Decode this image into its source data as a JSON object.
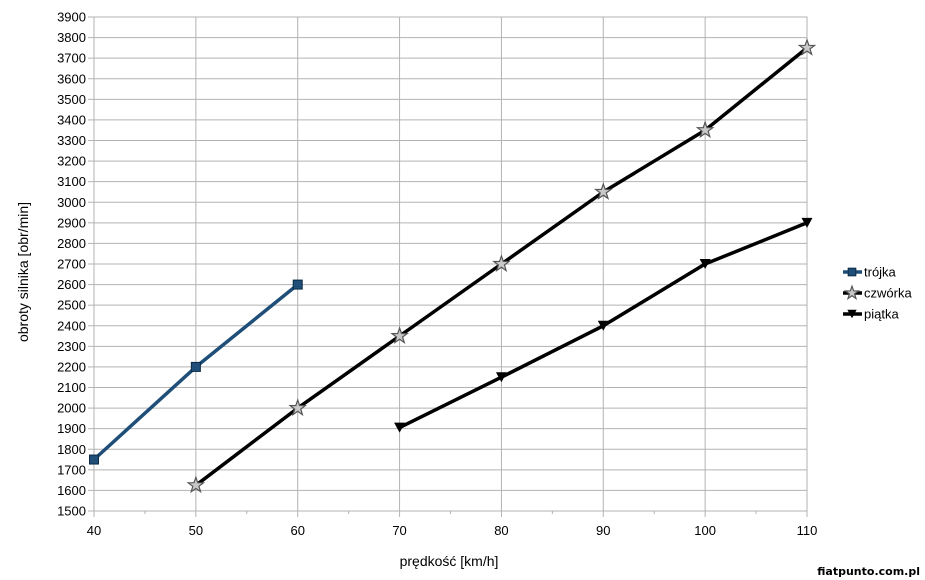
{
  "watermark": "fiatpunto.com.pl",
  "colors": {
    "trojka": "#1f4e79",
    "czworka": "#000000",
    "piatka": "#000000",
    "grid": "#b3b3b3",
    "star_fill": "#c8c8c8"
  },
  "chart_data": {
    "type": "line",
    "title": "",
    "xlabel": "prędkość [km/h]",
    "ylabel": "obroty silnika [obr/min]",
    "xlim": [
      40,
      110
    ],
    "ylim": [
      1500,
      3900
    ],
    "x_ticks": [
      40,
      50,
      60,
      70,
      80,
      90,
      100,
      110
    ],
    "y_ticks": [
      1500,
      1600,
      1700,
      1800,
      1900,
      2000,
      2100,
      2200,
      2300,
      2400,
      2500,
      2600,
      2700,
      2800,
      2900,
      3000,
      3100,
      3200,
      3300,
      3400,
      3500,
      3600,
      3700,
      3800,
      3900
    ],
    "grid": true,
    "legend": "right",
    "series": [
      {
        "name": "trójka",
        "marker": "square",
        "color": "#1f4e79",
        "x": [
          40,
          50,
          60
        ],
        "y": [
          1750,
          2200,
          2600
        ]
      },
      {
        "name": "czwórka",
        "marker": "star",
        "color": "#000000",
        "x": [
          50,
          60,
          70,
          80,
          90,
          100,
          110
        ],
        "y": [
          1625,
          2000,
          2350,
          2700,
          3050,
          3350,
          3750
        ]
      },
      {
        "name": "piątka",
        "marker": "triangle-down",
        "color": "#000000",
        "x": [
          70,
          80,
          90,
          100,
          110
        ],
        "y": [
          1905,
          2150,
          2400,
          2700,
          2900
        ]
      }
    ]
  }
}
